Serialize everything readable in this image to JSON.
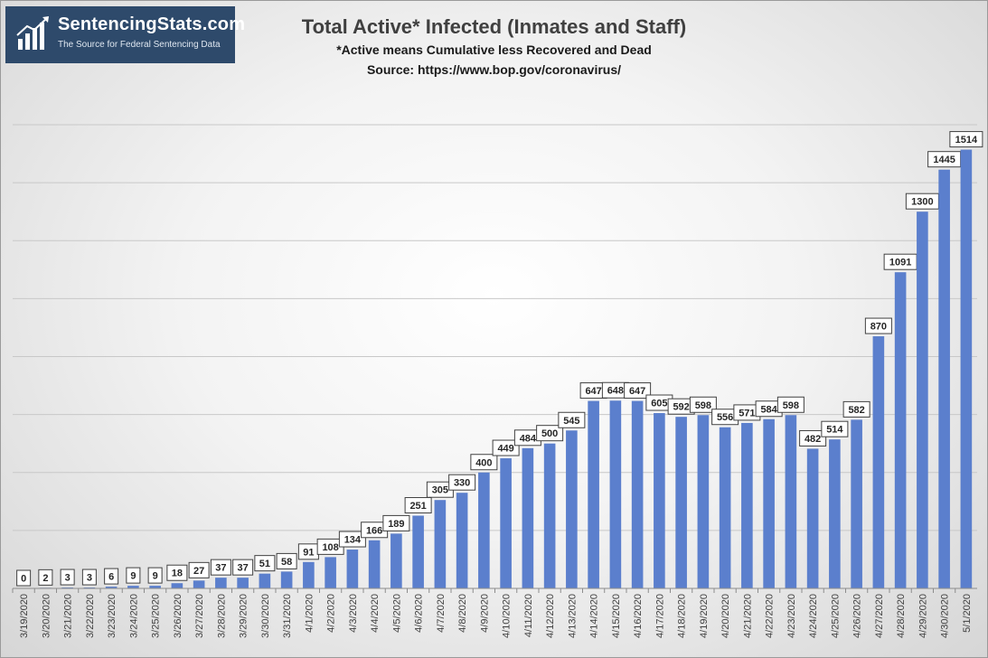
{
  "logo": {
    "brand": "SentencingStats.com",
    "tagline": "The Source for Federal Sentencing Data",
    "icon": "bar-chart-icon"
  },
  "chart_data": {
    "type": "bar",
    "title": "Total Active* Infected (Inmates and Staff)",
    "subtitle": "*Active means Cumulative less Recovered and Dead",
    "source": "Source: https://www.bop.gov/coronavirus/",
    "xlabel": "",
    "ylabel": "",
    "ylim": [
      0,
      1600
    ],
    "grid": true,
    "legend": "none",
    "bar_color": "#5b7fcd",
    "categories": [
      "3/19/2020",
      "3/20/2020",
      "3/21/2020",
      "3/22/2020",
      "3/23/2020",
      "3/24/2020",
      "3/25/2020",
      "3/26/2020",
      "3/27/2020",
      "3/28/2020",
      "3/29/2020",
      "3/30/2020",
      "3/31/2020",
      "4/1/2020",
      "4/2/2020",
      "4/3/2020",
      "4/4/2020",
      "4/5/2020",
      "4/6/2020",
      "4/7/2020",
      "4/8/2020",
      "4/9/2020",
      "4/10/2020",
      "4/11/2020",
      "4/12/2020",
      "4/13/2020",
      "4/14/2020",
      "4/15/2020",
      "4/16/2020",
      "4/17/2020",
      "4/18/2020",
      "4/19/2020",
      "4/20/2020",
      "4/21/2020",
      "4/22/2020",
      "4/23/2020",
      "4/24/2020",
      "4/25/2020",
      "4/26/2020",
      "4/27/2020",
      "4/28/2020",
      "4/29/2020",
      "4/30/2020",
      "5/1/2020"
    ],
    "values": [
      0,
      2,
      3,
      3,
      6,
      9,
      9,
      18,
      27,
      37,
      37,
      51,
      58,
      91,
      108,
      134,
      166,
      189,
      251,
      305,
      330,
      400,
      449,
      484,
      500,
      545,
      647,
      648,
      647,
      605,
      592,
      598,
      556,
      571,
      584,
      598,
      482,
      514,
      582,
      870,
      1091,
      1300,
      1445,
      1514
    ]
  }
}
